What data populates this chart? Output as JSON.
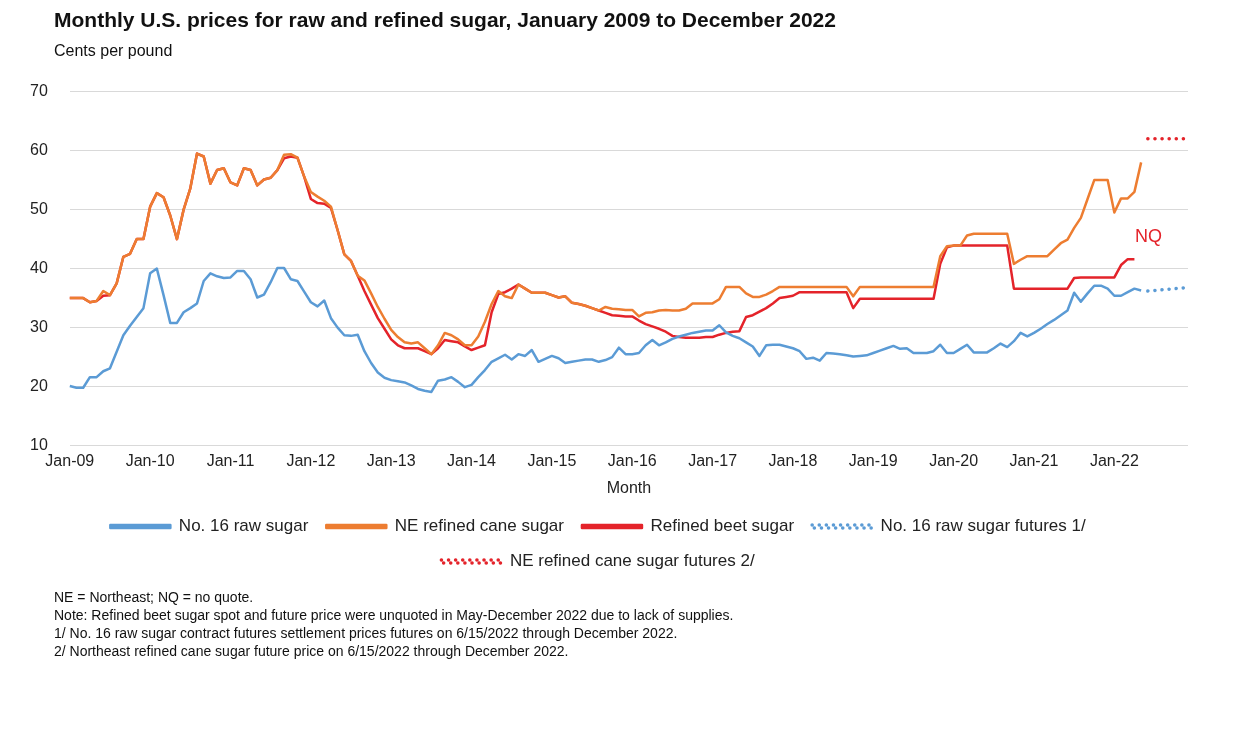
{
  "chart_data": {
    "type": "line",
    "title": "Monthly U.S. prices for raw and refined sugar, January 2009 to December 2022",
    "ylabel": "Cents per pound",
    "xlabel": "Month",
    "categories": [
      "Jan-09",
      null,
      null,
      null,
      null,
      null,
      null,
      null,
      null,
      null,
      null,
      null,
      "Jan-10",
      null,
      null,
      null,
      null,
      null,
      null,
      null,
      null,
      null,
      null,
      null,
      "Jan-11",
      null,
      null,
      null,
      null,
      null,
      null,
      null,
      null,
      null,
      null,
      null,
      "Jan-12",
      null,
      null,
      null,
      null,
      null,
      null,
      null,
      null,
      null,
      null,
      null,
      "Jan-13",
      null,
      null,
      null,
      null,
      null,
      null,
      null,
      null,
      null,
      null,
      null,
      "Jan-14",
      null,
      null,
      null,
      null,
      null,
      null,
      null,
      null,
      null,
      null,
      null,
      "Jan-15",
      null,
      null,
      null,
      null,
      null,
      null,
      null,
      null,
      null,
      null,
      null,
      "Jan-16",
      null,
      null,
      null,
      null,
      null,
      null,
      null,
      null,
      null,
      null,
      null,
      "Jan-17",
      null,
      null,
      null,
      null,
      null,
      null,
      null,
      null,
      null,
      null,
      null,
      "Jan-18",
      null,
      null,
      null,
      null,
      null,
      null,
      null,
      null,
      null,
      null,
      null,
      "Jan-19",
      null,
      null,
      null,
      null,
      null,
      null,
      null,
      null,
      null,
      null,
      null,
      "Jan-20",
      null,
      null,
      null,
      null,
      null,
      null,
      null,
      null,
      null,
      null,
      null,
      "Jan-21",
      null,
      null,
      null,
      null,
      null,
      null,
      null,
      null,
      null,
      null,
      null,
      "Jan-22",
      null,
      null,
      null,
      null,
      null,
      null,
      null,
      null,
      null,
      null,
      null
    ],
    "series": [
      {
        "name": "No. 16 raw sugar",
        "color": "#5b9bd5",
        "line_style": "solid",
        "values": [
          20.1,
          19.8,
          19.8,
          21.6,
          21.6,
          22.6,
          23.1,
          25.9,
          28.7,
          30.3,
          31.8,
          33.3,
          39.2,
          40,
          35.5,
          30.8,
          30.8,
          32.6,
          33.3,
          34.1,
          37.9,
          39.2,
          38.7,
          38.4,
          38.5,
          39.6,
          39.6,
          38.2,
          35.1,
          35.6,
          37.7,
          40.1,
          40.1,
          38.2,
          37.9,
          36.1,
          34.3,
          33.6,
          34.6,
          31.6,
          30,
          28.7,
          28.6,
          28.8,
          26,
          24,
          22.4,
          21.5,
          21.1,
          20.9,
          20.7,
          20.2,
          19.6,
          19.3,
          19.1,
          21,
          21.2,
          21.6,
          20.8,
          19.9,
          20.3,
          21.6,
          22.8,
          24.2,
          24.8,
          25.4,
          24.6,
          25.5,
          25.2,
          26.2,
          24.2,
          24.7,
          25.2,
          24.8,
          24,
          24.2,
          24.4,
          24.6,
          24.6,
          24.2,
          24.5,
          25,
          26.6,
          25.5,
          25.5,
          25.7,
          27,
          27.9,
          27,
          27.5,
          28.1,
          28.5,
          28.8,
          29.1,
          29.3,
          29.5,
          29.5,
          30.4,
          29.2,
          28.6,
          28.2,
          27.5,
          26.8,
          25.2,
          27,
          27.1,
          27.1,
          26.8,
          26.5,
          26,
          24.7,
          24.9,
          24.4,
          25.7,
          25.6,
          25.5,
          25.3,
          25.1,
          25.2,
          25.3,
          25.7,
          26.1,
          26.5,
          26.9,
          26.4,
          26.5,
          25.7,
          25.7,
          25.7,
          26,
          27.1,
          25.7,
          25.7,
          26.4,
          27.1,
          25.8,
          25.8,
          25.8,
          26.5,
          27.3,
          26.7,
          27.7,
          29.1,
          28.5,
          29.1,
          29.8,
          30.6,
          31.3,
          32.1,
          32.9,
          35.9,
          34.4,
          35.8,
          37.1,
          37.1,
          36.6,
          35.4,
          35.4,
          36,
          36.6,
          36.3,
          null,
          null,
          null,
          null,
          null,
          null,
          null
        ]
      },
      {
        "name": "NE refined cane sugar",
        "color": "#ed7d31",
        "line_style": "solid",
        "values": [
          35,
          35,
          35,
          34.3,
          34.5,
          36.2,
          35.5,
          37.5,
          42,
          42.5,
          45,
          45,
          50.5,
          52.8,
          52.1,
          49,
          45,
          50,
          53.6,
          59.5,
          59,
          54.4,
          56.7,
          57,
          54.6,
          54.1,
          57,
          56.7,
          54.1,
          55.1,
          55.4,
          56.7,
          59.3,
          59.4,
          58.8,
          55.6,
          53,
          52.2,
          51.5,
          50.5,
          46.5,
          42.4,
          41.3,
          38.8,
          38,
          35.8,
          33.5,
          31.5,
          29.6,
          28.4,
          27.5,
          27.3,
          27.5,
          26.5,
          25.5,
          27,
          29.1,
          28.7,
          28,
          27,
          27,
          28.5,
          31,
          34,
          36.2,
          35.3,
          35,
          37.3,
          36.6,
          35.9,
          35.9,
          35.9,
          35.5,
          35.1,
          35.3,
          34.2,
          34,
          33.7,
          33.3,
          32.9,
          33.5,
          33.2,
          33.1,
          33,
          33,
          31.9,
          32.5,
          32.6,
          32.9,
          33,
          32.9,
          32.9,
          33.2,
          34.1,
          34.1,
          34.1,
          34.1,
          34.8,
          36.9,
          36.9,
          36.9,
          35.8,
          35.2,
          35.2,
          35.6,
          36.2,
          36.9,
          36.9,
          36.9,
          36.9,
          36.9,
          36.9,
          36.9,
          36.9,
          36.9,
          36.9,
          36.9,
          35.3,
          36.9,
          36.9,
          36.9,
          36.9,
          36.9,
          36.9,
          36.9,
          36.9,
          36.9,
          36.9,
          36.9,
          36.9,
          42.1,
          43.8,
          43.9,
          43.9,
          45.6,
          45.9,
          45.9,
          45.9,
          45.9,
          45.9,
          45.9,
          40.8,
          41.5,
          42.1,
          42.1,
          42.1,
          42.1,
          43.2,
          44.3,
          44.9,
          46.9,
          48.6,
          51.8,
          55,
          55,
          55,
          49.5,
          51.9,
          51.9,
          53,
          58,
          null,
          null,
          null,
          null,
          null,
          null,
          null
        ]
      },
      {
        "name": "Refined beet sugar",
        "color": "#e4232a",
        "line_style": "solid",
        "values": [
          35,
          35,
          35,
          34.3,
          34.5,
          35.4,
          35.5,
          37.5,
          42,
          42.5,
          45,
          45,
          50.5,
          52.8,
          52.1,
          49,
          45,
          50,
          53.6,
          59.5,
          59,
          54.4,
          56.7,
          57,
          54.6,
          54.1,
          57,
          56.7,
          54.1,
          55.1,
          55.4,
          56.7,
          58.7,
          59,
          58.8,
          55.6,
          51.8,
          51.1,
          51,
          50.3,
          46.5,
          42.4,
          41.3,
          38.8,
          36.2,
          33.9,
          31.6,
          29.8,
          28,
          27,
          26.5,
          26.5,
          26.5,
          26,
          25.5,
          26.5,
          27.9,
          27.7,
          27.5,
          26.8,
          26.2,
          26.6,
          27,
          32.6,
          35.7,
          36,
          36.6,
          37.3,
          36.6,
          35.9,
          35.9,
          35.9,
          35.5,
          35.1,
          35.3,
          34.2,
          34,
          33.7,
          33.3,
          32.9,
          32.5,
          32.1,
          32,
          31.9,
          31.9,
          31.2,
          30.6,
          30.2,
          29.8,
          29.3,
          28.6,
          28.4,
          28.3,
          28.3,
          28.3,
          28.4,
          28.4,
          28.8,
          29.1,
          29.3,
          29.4,
          31.8,
          32.1,
          32.7,
          33.3,
          34.1,
          35,
          35.2,
          35.4,
          36,
          36,
          36,
          36,
          36,
          36,
          36,
          36,
          33.3,
          34.9,
          34.9,
          34.9,
          34.9,
          34.9,
          34.9,
          34.9,
          34.9,
          34.9,
          34.9,
          34.9,
          34.9,
          40.8,
          43.6,
          43.9,
          43.9,
          43.9,
          43.9,
          43.9,
          43.9,
          43.9,
          43.9,
          43.9,
          36.6,
          36.6,
          36.6,
          36.6,
          36.6,
          36.6,
          36.6,
          36.6,
          36.6,
          38.4,
          38.5,
          38.5,
          38.5,
          38.5,
          38.5,
          38.5,
          40.6,
          41.6,
          41.6,
          null,
          null,
          null,
          null,
          null,
          null,
          null,
          null
        ]
      },
      {
        "name": "No. 16 raw sugar futures 1/",
        "color": "#5b9bd5",
        "line_style": "dotted",
        "values": [
          null,
          null,
          null,
          null,
          null,
          null,
          null,
          null,
          null,
          null,
          null,
          null,
          null,
          null,
          null,
          null,
          null,
          null,
          null,
          null,
          null,
          null,
          null,
          null,
          null,
          null,
          null,
          null,
          null,
          null,
          null,
          null,
          null,
          null,
          null,
          null,
          null,
          null,
          null,
          null,
          null,
          null,
          null,
          null,
          null,
          null,
          null,
          null,
          null,
          null,
          null,
          null,
          null,
          null,
          null,
          null,
          null,
          null,
          null,
          null,
          null,
          null,
          null,
          null,
          null,
          null,
          null,
          null,
          null,
          null,
          null,
          null,
          null,
          null,
          null,
          null,
          null,
          null,
          null,
          null,
          null,
          null,
          null,
          null,
          null,
          null,
          null,
          null,
          null,
          null,
          null,
          null,
          null,
          null,
          null,
          null,
          null,
          null,
          null,
          null,
          null,
          null,
          null,
          null,
          null,
          null,
          null,
          null,
          null,
          null,
          null,
          null,
          null,
          null,
          null,
          null,
          null,
          null,
          null,
          null,
          null,
          null,
          null,
          null,
          null,
          null,
          null,
          null,
          null,
          null,
          null,
          null,
          null,
          null,
          null,
          null,
          null,
          null,
          null,
          null,
          null,
          null,
          null,
          null,
          null,
          null,
          null,
          null,
          null,
          null,
          null,
          null,
          null,
          null,
          null,
          null,
          null,
          null,
          null,
          null,
          null,
          36.2,
          36.3,
          36.4,
          36.5,
          36.6,
          36.7,
          36.8
        ]
      },
      {
        "name": "NE refined cane sugar futures 2/",
        "color": "#e4232a",
        "line_style": "dotted",
        "values": [
          null,
          null,
          null,
          null,
          null,
          null,
          null,
          null,
          null,
          null,
          null,
          null,
          null,
          null,
          null,
          null,
          null,
          null,
          null,
          null,
          null,
          null,
          null,
          null,
          null,
          null,
          null,
          null,
          null,
          null,
          null,
          null,
          null,
          null,
          null,
          null,
          null,
          null,
          null,
          null,
          null,
          null,
          null,
          null,
          null,
          null,
          null,
          null,
          null,
          null,
          null,
          null,
          null,
          null,
          null,
          null,
          null,
          null,
          null,
          null,
          null,
          null,
          null,
          null,
          null,
          null,
          null,
          null,
          null,
          null,
          null,
          null,
          null,
          null,
          null,
          null,
          null,
          null,
          null,
          null,
          null,
          null,
          null,
          null,
          null,
          null,
          null,
          null,
          null,
          null,
          null,
          null,
          null,
          null,
          null,
          null,
          null,
          null,
          null,
          null,
          null,
          null,
          null,
          null,
          null,
          null,
          null,
          null,
          null,
          null,
          null,
          null,
          null,
          null,
          null,
          null,
          null,
          null,
          null,
          null,
          null,
          null,
          null,
          null,
          null,
          null,
          null,
          null,
          null,
          null,
          null,
          null,
          null,
          null,
          null,
          null,
          null,
          null,
          null,
          null,
          null,
          null,
          null,
          null,
          null,
          null,
          null,
          null,
          null,
          null,
          null,
          null,
          null,
          null,
          null,
          null,
          null,
          null,
          null,
          null,
          null,
          62,
          62,
          62,
          62,
          62,
          62,
          62
        ]
      }
    ],
    "ylim": [
      10,
      70
    ],
    "yticks": [
      10,
      20,
      30,
      40,
      50,
      60,
      70
    ],
    "grid": "y",
    "legend": "bottom",
    "marker": "none",
    "annotations": [
      "NQ",
      "NE = Northeast; NQ = no quote.",
      "Note: Refined beet sugar spot and future price were unquoted in May-December 2022 due to lack of supplies.",
      "1/ No. 16 raw sugar contract futures settlement prices futures on 6/15/2022 through December 2022.",
      "2/ Northeast refined cane sugar future price on 6/15/2022 through December 2022."
    ]
  }
}
